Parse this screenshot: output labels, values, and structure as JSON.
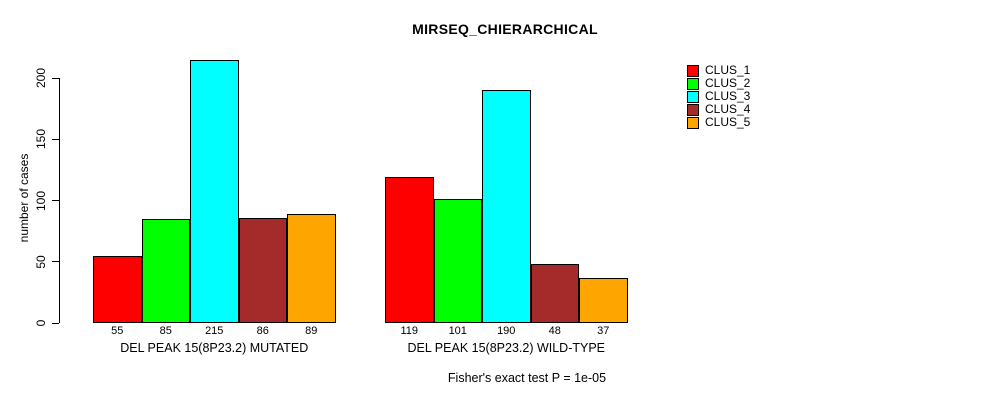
{
  "chart_data": {
    "type": "bar",
    "title": "MIRSEQ_CHIERARCHICAL",
    "ylabel": "number of cases",
    "xlabel": "",
    "yticks": [
      0,
      50,
      100,
      150,
      200
    ],
    "ylim": [
      0,
      215
    ],
    "grid": false,
    "legend_position": "right-outside",
    "series_names": [
      "CLUS_1",
      "CLUS_2",
      "CLUS_3",
      "CLUS_4",
      "CLUS_5"
    ],
    "colors": [
      "#FF0000",
      "#00FF00",
      "#00FFFF",
      "#A52A2A",
      "#FFA500"
    ],
    "bar_border_color": "#000000",
    "groups": [
      {
        "label": "DEL PEAK 15(8P23.2) MUTATED",
        "values": [
          55,
          85,
          215,
          86,
          89
        ]
      },
      {
        "label": "DEL PEAK 15(8P23.2) WILD-TYPE",
        "values": [
          119,
          101,
          190,
          48,
          37
        ]
      }
    ],
    "value_labels_shown": true,
    "annotation": "Fisher's exact test P = 1e-05"
  }
}
